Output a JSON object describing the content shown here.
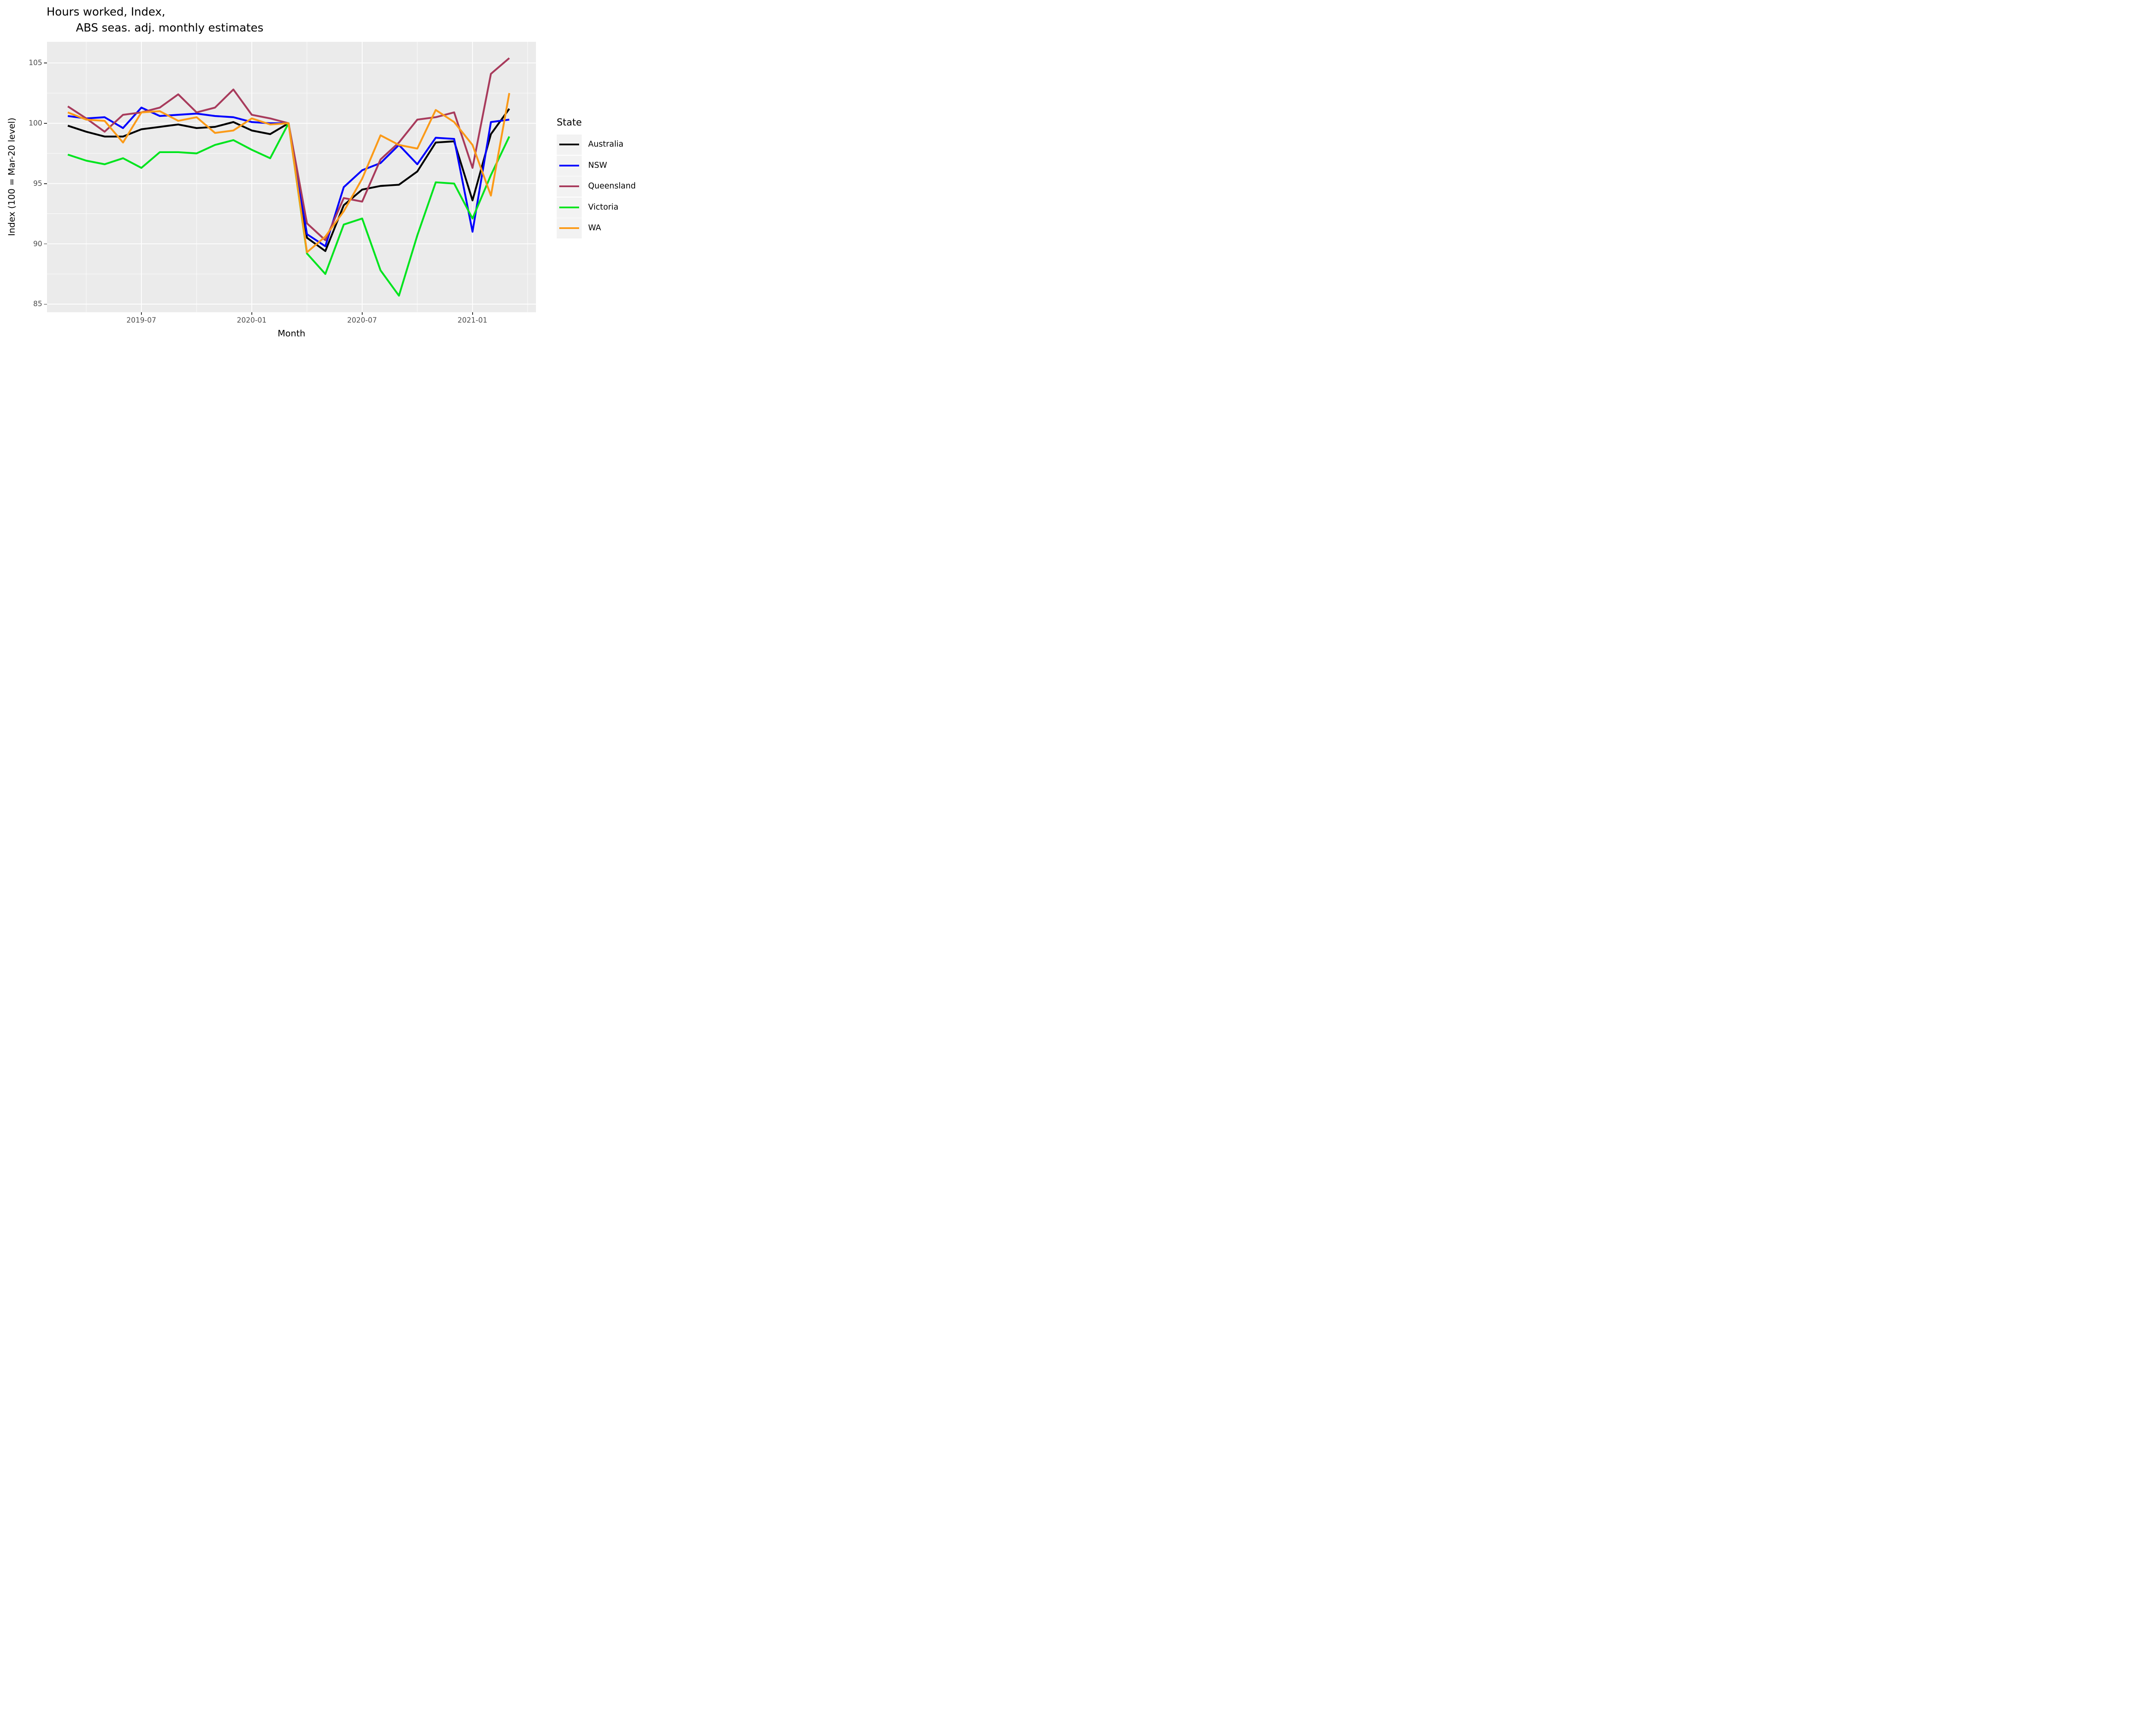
{
  "title": {
    "line1": "Hours worked, Index,",
    "line2": "ABS seas. adj. monthly estimates"
  },
  "axes": {
    "x": {
      "title": "Month",
      "tick_labels": [
        "2019-07",
        "2020-01",
        "2020-07",
        "2021-01"
      ]
    },
    "y": {
      "title": "Index (100 = Mar-20 level)",
      "tick_labels": [
        "105",
        "100",
        "95",
        "90",
        "85"
      ]
    }
  },
  "legend": {
    "title": "State",
    "items": [
      {
        "label": "Australia",
        "color": "#000000"
      },
      {
        "label": "NSW",
        "color": "#0000FF"
      },
      {
        "label": "Queensland",
        "color": "#A83B5C"
      },
      {
        "label": "Victoria",
        "color": "#00E41E"
      },
      {
        "label": "WA",
        "color": "#FB9A18"
      }
    ]
  },
  "chart_data": {
    "type": "line",
    "title": "Hours worked, Index, ABS seas. adj. monthly estimates",
    "xlabel": "Month",
    "ylabel": "Index (100 = Mar-20 level)",
    "x": [
      "2019-03",
      "2019-04",
      "2019-05",
      "2019-06",
      "2019-07",
      "2019-08",
      "2019-09",
      "2019-10",
      "2019-11",
      "2019-12",
      "2020-01",
      "2020-02",
      "2020-03",
      "2020-04",
      "2020-05",
      "2020-06",
      "2020-07",
      "2020-08",
      "2020-09",
      "2020-10",
      "2020-11",
      "2020-12",
      "2021-01",
      "2021-02",
      "2021-03"
    ],
    "series": [
      {
        "name": "Australia",
        "color": "#000000",
        "values": [
          99.8,
          99.3,
          98.9,
          98.9,
          99.5,
          99.7,
          99.9,
          99.6,
          99.7,
          100.1,
          99.4,
          99.1,
          100.0,
          90.5,
          89.4,
          93.2,
          94.5,
          94.8,
          94.9,
          96.0,
          98.4,
          98.5,
          93.6,
          99.1,
          101.2
        ]
      },
      {
        "name": "NSW",
        "color": "#0000FF",
        "values": [
          100.6,
          100.4,
          100.5,
          99.6,
          101.3,
          100.6,
          100.7,
          100.8,
          100.6,
          100.5,
          100.1,
          100.0,
          100.0,
          90.8,
          89.8,
          94.7,
          96.1,
          96.7,
          98.2,
          96.6,
          98.8,
          98.7,
          91.0,
          100.1,
          100.3
        ]
      },
      {
        "name": "Queensland",
        "color": "#A83B5C",
        "values": [
          101.4,
          100.4,
          99.3,
          100.7,
          100.9,
          101.3,
          102.4,
          100.9,
          101.3,
          102.8,
          100.7,
          100.4,
          100.0,
          91.7,
          90.3,
          93.8,
          93.5,
          97.0,
          98.4,
          100.3,
          100.5,
          100.9,
          96.3,
          104.1,
          105.4
        ]
      },
      {
        "name": "Victoria",
        "color": "#00E41E",
        "values": [
          97.4,
          96.9,
          96.6,
          97.1,
          96.3,
          97.6,
          97.6,
          97.5,
          98.2,
          98.6,
          97.8,
          97.1,
          100.0,
          89.2,
          87.5,
          91.6,
          92.1,
          87.8,
          85.7,
          90.7,
          95.1,
          95.0,
          92.1,
          95.7,
          98.9
        ]
      },
      {
        "name": "WA",
        "color": "#FB9A18",
        "values": [
          100.9,
          100.3,
          100.2,
          98.4,
          100.9,
          101.0,
          100.2,
          100.5,
          99.2,
          99.4,
          100.4,
          99.9,
          100.0,
          89.3,
          90.6,
          92.7,
          95.4,
          99.0,
          98.2,
          97.9,
          101.1,
          100.1,
          98.2,
          94.0,
          102.5
        ]
      }
    ],
    "ylim": [
      84.1,
      106.9
    ],
    "y_major_ticks": [
      105,
      100,
      95,
      90,
      85
    ],
    "y_minor_ticks": [
      102.5,
      97.5,
      92.5,
      87.5
    ],
    "x_major_tick_idx": [
      4,
      10,
      16,
      22
    ],
    "x_minor_tick_idx": [
      1,
      7,
      13,
      19,
      25
    ],
    "grid": true,
    "legend_position": "right",
    "panel_background": "#EBEBEB",
    "grid_color": "#FFFFFF",
    "tick_text_color": "#4D4D4D"
  }
}
